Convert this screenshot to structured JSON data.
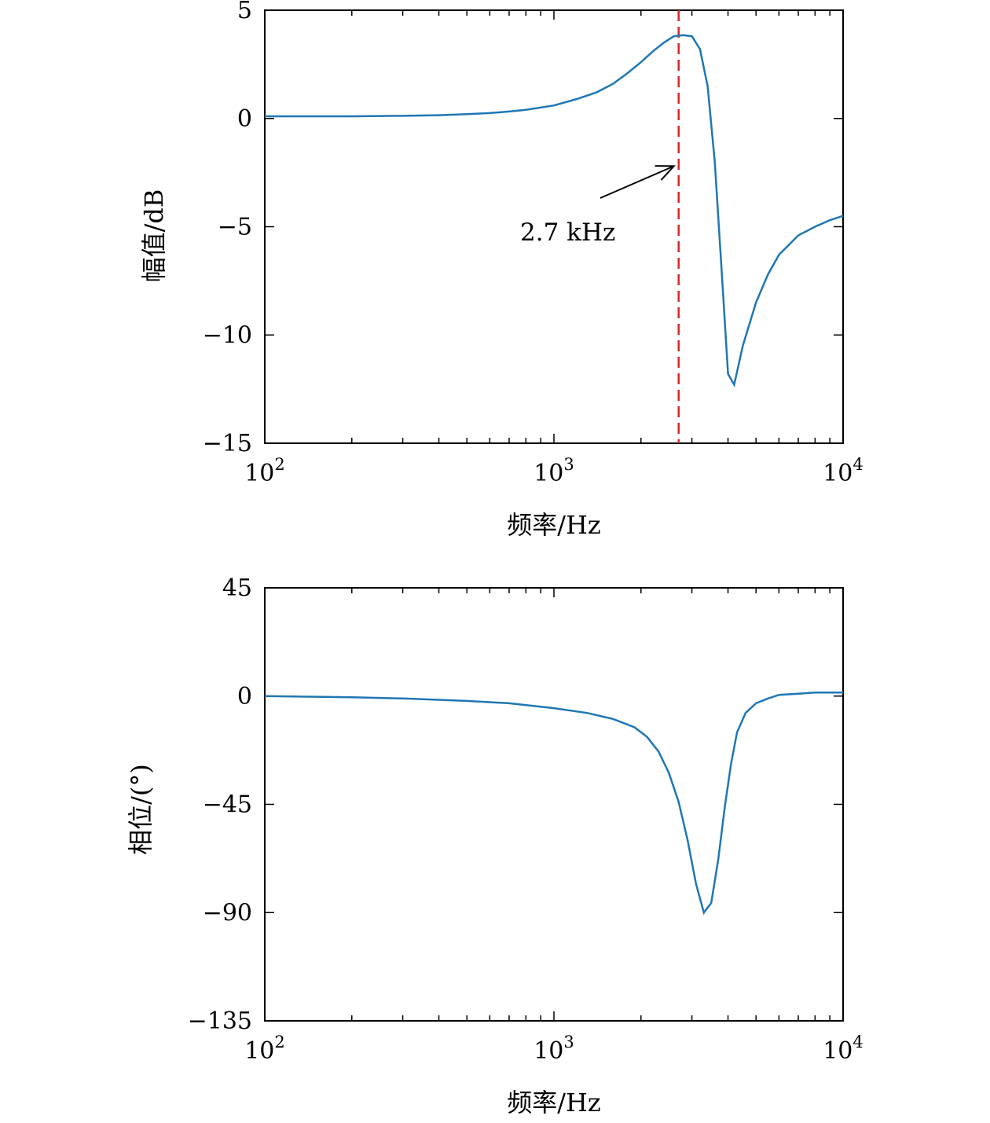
{
  "colors": {
    "series": "#1f77b4",
    "marker_line": "#d62728",
    "axis": "#000000",
    "background": "#ffffff"
  },
  "chart_data": [
    {
      "type": "line",
      "xscale": "log",
      "xlim": [
        100,
        10000
      ],
      "ylim": [
        -15,
        5
      ],
      "xlabel": "频率/Hz",
      "ylabel": "幅值/dB",
      "xticks": [
        {
          "value": 100,
          "base": "10",
          "exp": "2"
        },
        {
          "value": 1000,
          "base": "10",
          "exp": "3"
        },
        {
          "value": 10000,
          "base": "10",
          "exp": "4"
        }
      ],
      "yticks": [
        {
          "value": 5,
          "label": "5"
        },
        {
          "value": 0,
          "label": "0"
        },
        {
          "value": -5,
          "label": "−5"
        },
        {
          "value": -10,
          "label": "−10"
        },
        {
          "value": -15,
          "label": "−15"
        }
      ],
      "grid": false,
      "vline": {
        "x": 2700,
        "style": "dashed",
        "color": "#d62728"
      },
      "annotation": {
        "text": "2.7 kHz",
        "arrow_to_x": 2600,
        "arrow_to_y": -2.2
      },
      "series": [
        {
          "x": [
            100,
            150,
            200,
            300,
            400,
            500,
            600,
            700,
            800,
            1000,
            1200,
            1400,
            1600,
            1800,
            2000,
            2200,
            2400,
            2600,
            2800,
            3000,
            3200,
            3400,
            3600,
            3800,
            4000,
            4200,
            4500,
            5000,
            5500,
            6000,
            7000,
            8000,
            9000,
            10000
          ],
          "y": [
            0.1,
            0.1,
            0.1,
            0.12,
            0.15,
            0.2,
            0.25,
            0.32,
            0.4,
            0.6,
            0.9,
            1.2,
            1.6,
            2.1,
            2.6,
            3.1,
            3.5,
            3.8,
            3.85,
            3.8,
            3.2,
            1.5,
            -2.0,
            -7.0,
            -11.8,
            -12.3,
            -10.5,
            -8.5,
            -7.2,
            -6.3,
            -5.4,
            -5.0,
            -4.7,
            -4.5
          ]
        }
      ]
    },
    {
      "type": "line",
      "xscale": "log",
      "xlim": [
        100,
        10000
      ],
      "ylim": [
        -135,
        45
      ],
      "xlabel": "频率/Hz",
      "ylabel": "相位/(°)",
      "xticks": [
        {
          "value": 100,
          "base": "10",
          "exp": "2"
        },
        {
          "value": 1000,
          "base": "10",
          "exp": "3"
        },
        {
          "value": 10000,
          "base": "10",
          "exp": "4"
        }
      ],
      "yticks": [
        {
          "value": 45,
          "label": "45"
        },
        {
          "value": 0,
          "label": "0"
        },
        {
          "value": -45,
          "label": "−45"
        },
        {
          "value": -90,
          "label": "−90"
        },
        {
          "value": -135,
          "label": "−135"
        }
      ],
      "grid": false,
      "series": [
        {
          "x": [
            100,
            200,
            300,
            500,
            700,
            1000,
            1300,
            1600,
            1900,
            2100,
            2300,
            2500,
            2700,
            2900,
            3100,
            3300,
            3500,
            3700,
            3900,
            4100,
            4300,
            4600,
            5000,
            5500,
            6000,
            7000,
            8000,
            10000
          ],
          "y": [
            0,
            -0.5,
            -1,
            -2,
            -3,
            -5,
            -7,
            -9.5,
            -13,
            -17,
            -23,
            -32,
            -44,
            -60,
            -78,
            -90,
            -86,
            -68,
            -46,
            -28,
            -15,
            -7,
            -3,
            -1,
            0.5,
            1,
            1.5,
            1.5
          ]
        }
      ]
    }
  ]
}
